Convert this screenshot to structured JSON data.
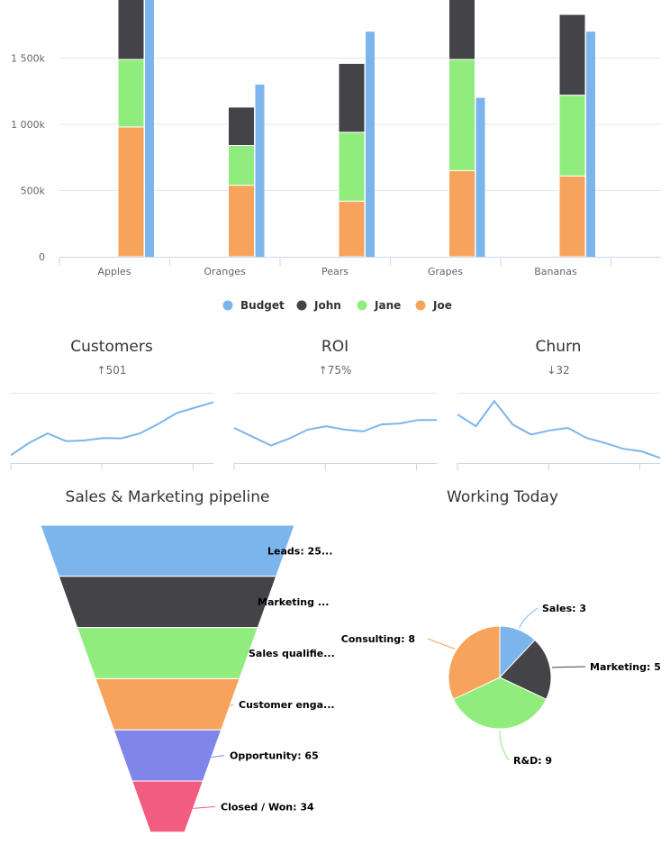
{
  "colors": {
    "budget": "#7cb5ec",
    "john": "#434348",
    "jane": "#90ed7d",
    "joe": "#f7a35c",
    "opportunity": "#8085e9",
    "closed": "#f15c80",
    "grid": "#e6e6e6",
    "axis": "#ccd6eb"
  },
  "chart_data": [
    {
      "type": "bar",
      "categories": [
        "Apples",
        "Oranges",
        "Pears",
        "Grapes",
        "Bananas"
      ],
      "series": [
        {
          "name": "Joe",
          "stack": "people",
          "values": [
            980000,
            540000,
            420000,
            650000,
            610000
          ]
        },
        {
          "name": "Jane",
          "stack": "people",
          "values": [
            510000,
            300000,
            520000,
            840000,
            610000
          ]
        },
        {
          "name": "John",
          "stack": "people",
          "values": [
            600000,
            290000,
            520000,
            620000,
            610000
          ]
        },
        {
          "name": "Budget",
          "stack": "budget",
          "values": [
            2100000,
            1300000,
            1700000,
            1200000,
            1700000
          ]
        }
      ],
      "yticks": [
        "0",
        "500k",
        "1 000k",
        "1 500k"
      ],
      "ylim": [
        0,
        1950000
      ],
      "legend": [
        "Budget",
        "John",
        "Jane",
        "Joe"
      ],
      "legend_placement": "bottom-center",
      "grid": true
    },
    {
      "type": "line",
      "title": "Customers",
      "subtitle": "↑501",
      "values": [
        5,
        13,
        19,
        14,
        14.5,
        16,
        15.8,
        19,
        25,
        32,
        35.5,
        39
      ],
      "ylim": [
        0,
        45
      ]
    },
    {
      "type": "line",
      "title": "ROI",
      "subtitle": "↑75%",
      "values": [
        20,
        15,
        10,
        14,
        19,
        21,
        19,
        18,
        22,
        22.5,
        24.5,
        24.5
      ],
      "ylim": [
        0,
        40
      ]
    },
    {
      "type": "line",
      "title": "Churn",
      "subtitle": "↓32",
      "values": [
        29,
        22,
        37,
        23,
        17,
        19.5,
        21,
        15,
        12,
        8.5,
        7,
        3
      ],
      "ylim": [
        0,
        42
      ]
    },
    {
      "type": "funnel",
      "title": "Sales & Marketing pipeline",
      "stages": [
        {
          "label": "Leads: 25...",
          "color_key": "budget"
        },
        {
          "label": "Marketing ...",
          "color_key": "john"
        },
        {
          "label": "Sales qualifie...",
          "color_key": "jane"
        },
        {
          "label": "Customer enga...",
          "color_key": "joe"
        },
        {
          "label": "Opportunity: 65",
          "color_key": "opportunity"
        },
        {
          "label": "Closed / Won: 34",
          "color_key": "closed"
        }
      ]
    },
    {
      "type": "pie",
      "title": "Working Today",
      "slices": [
        {
          "name": "Sales",
          "value": 3,
          "label": "Sales: 3",
          "color_key": "budget"
        },
        {
          "name": "Marketing",
          "value": 5,
          "label": "Marketing: 5",
          "color_key": "john"
        },
        {
          "name": "R&D",
          "value": 9,
          "label": "R&D: 9",
          "color_key": "jane"
        },
        {
          "name": "Consulting",
          "value": 8,
          "label": "Consulting: 8",
          "color_key": "joe"
        }
      ]
    }
  ]
}
